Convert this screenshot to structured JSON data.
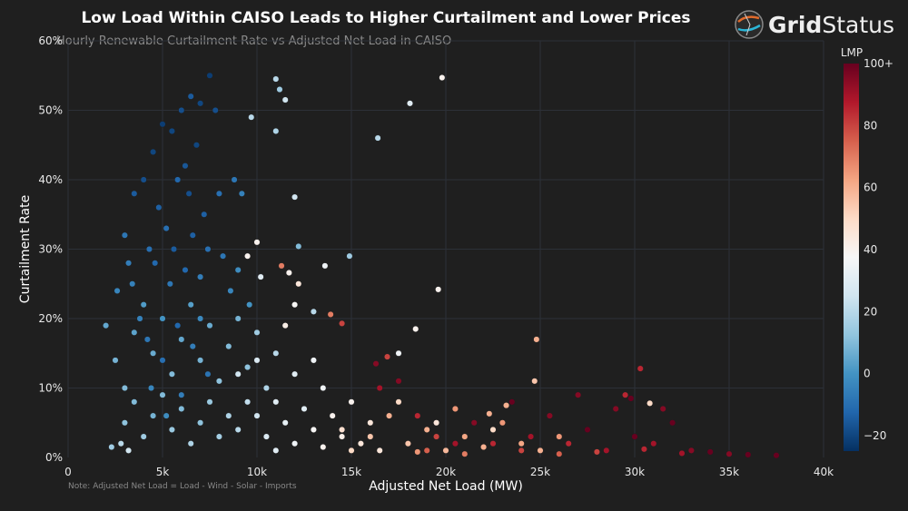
{
  "logo": {
    "text_bold": "Grid",
    "text_light": "Status"
  },
  "note": "Note: Adjusted Net Load = Load - Wind - Solar - Imports",
  "chart_data": {
    "type": "scatter",
    "title": "Low Load Within CAISO Leads to Higher Curtailment and Lower Prices",
    "subtitle": "Hourly Renewable Curtailment Rate vs Adjusted Net Load in CAISO",
    "xlabel": "Adjusted Net Load (MW)",
    "ylabel": "Curtailment Rate",
    "xlim": [
      0,
      40000
    ],
    "ylim": [
      0,
      60
    ],
    "xticks": [
      0,
      5000,
      10000,
      15000,
      20000,
      25000,
      30000,
      35000,
      40000
    ],
    "xtick_labels": [
      "0",
      "5k",
      "10k",
      "15k",
      "20k",
      "25k",
      "30k",
      "35k",
      "40k"
    ],
    "yticks": [
      0,
      10,
      20,
      30,
      40,
      50,
      60
    ],
    "ytick_labels": [
      "0%",
      "10%",
      "20%",
      "30%",
      "40%",
      "50%",
      "60%"
    ],
    "grid": true,
    "colorbar": {
      "title": "LMP",
      "range": [
        -25,
        100
      ],
      "ticks": [
        100,
        80,
        60,
        40,
        20,
        0,
        -20
      ],
      "tick_labels": [
        "100+",
        "80",
        "60",
        "40",
        "20",
        "0",
        "−20"
      ],
      "colorscale": [
        "#053061",
        "#2166ac",
        "#4393c3",
        "#92c5de",
        "#d1e5f0",
        "#f7f7f7",
        "#fddbc7",
        "#f4a582",
        "#d6604d",
        "#b2182b",
        "#67001f"
      ]
    },
    "point_fields": [
      "adjusted_net_load_mw",
      "curtailment_rate_pct",
      "lmp"
    ],
    "points": [
      [
        3500,
        38,
        -15
      ],
      [
        4000,
        40,
        -18
      ],
      [
        4500,
        44,
        -20
      ],
      [
        5000,
        48,
        -22
      ],
      [
        5500,
        47,
        -20
      ],
      [
        6000,
        50,
        -18
      ],
      [
        6500,
        52,
        -15
      ],
      [
        7000,
        51,
        -20
      ],
      [
        7500,
        55,
        -22
      ],
      [
        7800,
        50,
        -18
      ],
      [
        6800,
        45,
        -20
      ],
      [
        6200,
        42,
        -16
      ],
      [
        5800,
        40,
        -12
      ],
      [
        4800,
        36,
        -14
      ],
      [
        5200,
        33,
        -10
      ],
      [
        6400,
        38,
        -18
      ],
      [
        7200,
        35,
        -14
      ],
      [
        8000,
        38,
        -10
      ],
      [
        8800,
        40,
        -8
      ],
      [
        9200,
        38,
        -5
      ],
      [
        4300,
        30,
        -10
      ],
      [
        3000,
        32,
        -8
      ],
      [
        3200,
        28,
        -6
      ],
      [
        2600,
        24,
        -4
      ],
      [
        3400,
        25,
        -5
      ],
      [
        4600,
        28,
        -12
      ],
      [
        5600,
        30,
        -15
      ],
      [
        6600,
        32,
        -14
      ],
      [
        7400,
        30,
        -10
      ],
      [
        8200,
        29,
        -8
      ],
      [
        9000,
        27,
        -2
      ],
      [
        5400,
        25,
        -8
      ],
      [
        6200,
        27,
        -12
      ],
      [
        7000,
        26,
        -6
      ],
      [
        8600,
        24,
        -4
      ],
      [
        9600,
        22,
        0
      ],
      [
        3800,
        20,
        -5
      ],
      [
        4200,
        17,
        -8
      ],
      [
        5000,
        14,
        -10
      ],
      [
        5800,
        19,
        -12
      ],
      [
        6600,
        16,
        -6
      ],
      [
        7400,
        12,
        -9
      ],
      [
        4400,
        10,
        -4
      ],
      [
        6000,
        9,
        -6
      ],
      [
        7000,
        20,
        -3
      ],
      [
        5200,
        6,
        -2
      ],
      [
        2000,
        19,
        5
      ],
      [
        2500,
        14,
        8
      ],
      [
        3000,
        10,
        10
      ],
      [
        3500,
        18,
        4
      ],
      [
        4000,
        22,
        2
      ],
      [
        4500,
        15,
        6
      ],
      [
        5000,
        20,
        0
      ],
      [
        5500,
        12,
        10
      ],
      [
        6000,
        17,
        5
      ],
      [
        6500,
        22,
        3
      ],
      [
        7000,
        14,
        8
      ],
      [
        7500,
        19,
        6
      ],
      [
        8000,
        11,
        12
      ],
      [
        8500,
        16,
        10
      ],
      [
        9000,
        20,
        8
      ],
      [
        9500,
        13,
        12
      ],
      [
        10000,
        18,
        15
      ],
      [
        10500,
        10,
        18
      ],
      [
        11000,
        15,
        20
      ],
      [
        3000,
        5,
        12
      ],
      [
        3500,
        8,
        10
      ],
      [
        4000,
        3,
        15
      ],
      [
        4500,
        6,
        8
      ],
      [
        5000,
        9,
        10
      ],
      [
        5500,
        4,
        14
      ],
      [
        6000,
        7,
        10
      ],
      [
        6500,
        2,
        18
      ],
      [
        7000,
        5,
        12
      ],
      [
        7500,
        8,
        14
      ],
      [
        8000,
        3,
        16
      ],
      [
        8500,
        6,
        18
      ],
      [
        9000,
        4,
        20
      ],
      [
        9500,
        8,
        22
      ],
      [
        2300,
        1.5,
        15
      ],
      [
        2800,
        2,
        20
      ],
      [
        3200,
        1,
        25
      ],
      [
        10000,
        6,
        25
      ],
      [
        10500,
        3,
        28
      ],
      [
        11000,
        8,
        30
      ],
      [
        11500,
        5,
        32
      ],
      [
        12000,
        2,
        35
      ],
      [
        12500,
        7,
        30
      ],
      [
        13000,
        4,
        38
      ],
      [
        13500,
        10,
        35
      ],
      [
        14000,
        6,
        40
      ],
      [
        14500,
        3,
        42
      ],
      [
        15000,
        8,
        40
      ],
      [
        15500,
        2,
        45
      ],
      [
        9000,
        12,
        25
      ],
      [
        10000,
        14,
        28
      ],
      [
        12000,
        12,
        30
      ],
      [
        13000,
        14,
        35
      ],
      [
        16000,
        5,
        45
      ],
      [
        16500,
        1,
        45
      ],
      [
        11000,
        1,
        30
      ],
      [
        13500,
        1.5,
        40
      ],
      [
        12000,
        22,
        38
      ],
      [
        11500,
        19,
        42
      ],
      [
        9500,
        29,
        40
      ],
      [
        10200,
        26,
        30
      ],
      [
        15000,
        1,
        50
      ],
      [
        16000,
        3,
        55
      ],
      [
        17000,
        6,
        60
      ],
      [
        18000,
        2,
        55
      ],
      [
        19000,
        4,
        60
      ],
      [
        20000,
        1,
        58
      ],
      [
        20500,
        7,
        65
      ],
      [
        21000,
        3,
        62
      ],
      [
        22000,
        1.5,
        60
      ],
      [
        23000,
        5,
        65
      ],
      [
        24000,
        2,
        62
      ],
      [
        25000,
        1,
        60
      ],
      [
        26000,
        3,
        65
      ],
      [
        17500,
        8,
        50
      ],
      [
        19500,
        5,
        45
      ],
      [
        22500,
        4,
        50
      ],
      [
        14500,
        4,
        48
      ],
      [
        18500,
        0.8,
        65
      ],
      [
        16500,
        10,
        90
      ],
      [
        17500,
        11,
        95
      ],
      [
        18500,
        6,
        85
      ],
      [
        19500,
        3,
        80
      ],
      [
        20500,
        2,
        90
      ],
      [
        21500,
        5,
        95
      ],
      [
        22500,
        2,
        85
      ],
      [
        23500,
        8,
        100
      ],
      [
        24500,
        3,
        90
      ],
      [
        25500,
        6,
        95
      ],
      [
        26500,
        2,
        85
      ],
      [
        27500,
        4,
        100
      ],
      [
        28500,
        1,
        90
      ],
      [
        29000,
        7,
        95
      ],
      [
        30000,
        3,
        100
      ],
      [
        31000,
        2,
        90
      ],
      [
        32000,
        5,
        100
      ],
      [
        33000,
        1,
        95
      ],
      [
        34000,
        0.8,
        100
      ],
      [
        35000,
        0.5,
        95
      ],
      [
        36000,
        0.4,
        100
      ],
      [
        37500,
        0.3,
        100
      ],
      [
        27000,
        9,
        95
      ],
      [
        29800,
        8.5,
        100
      ],
      [
        24000,
        1,
        80
      ],
      [
        26000,
        0.5,
        75
      ],
      [
        28000,
        0.8,
        80
      ],
      [
        30500,
        1.2,
        85
      ],
      [
        32500,
        0.6,
        90
      ],
      [
        21000,
        0.5,
        70
      ],
      [
        19000,
        1,
        75
      ],
      [
        11000,
        54.5,
        20
      ],
      [
        11200,
        53,
        15
      ],
      [
        11500,
        51.5,
        25
      ],
      [
        9700,
        49,
        20
      ],
      [
        11000,
        47,
        18
      ],
      [
        16400,
        46,
        20
      ],
      [
        18100,
        51,
        30
      ],
      [
        19800,
        54.7,
        40
      ],
      [
        12000,
        37.5,
        25
      ],
      [
        10000,
        31,
        40
      ],
      [
        12200,
        30.4,
        10
      ],
      [
        14900,
        29,
        15
      ],
      [
        13600,
        27.6,
        35
      ],
      [
        11300,
        27.6,
        70
      ],
      [
        11700,
        26.6,
        40
      ],
      [
        12200,
        25,
        45
      ],
      [
        19600,
        24.2,
        40
      ],
      [
        18400,
        18.5,
        40
      ],
      [
        13000,
        21,
        20
      ],
      [
        13900,
        20.6,
        70
      ],
      [
        14500,
        19.3,
        80
      ],
      [
        24800,
        17,
        60
      ],
      [
        30300,
        12.8,
        85
      ],
      [
        17500,
        15,
        35
      ],
      [
        16900,
        14.5,
        80
      ],
      [
        16300,
        13.5,
        95
      ],
      [
        24700,
        11,
        55
      ],
      [
        30800,
        7.8,
        50
      ],
      [
        29500,
        9,
        85
      ],
      [
        31500,
        7,
        95
      ],
      [
        23200,
        7.5,
        60
      ],
      [
        22300,
        6.3,
        60
      ]
    ]
  }
}
